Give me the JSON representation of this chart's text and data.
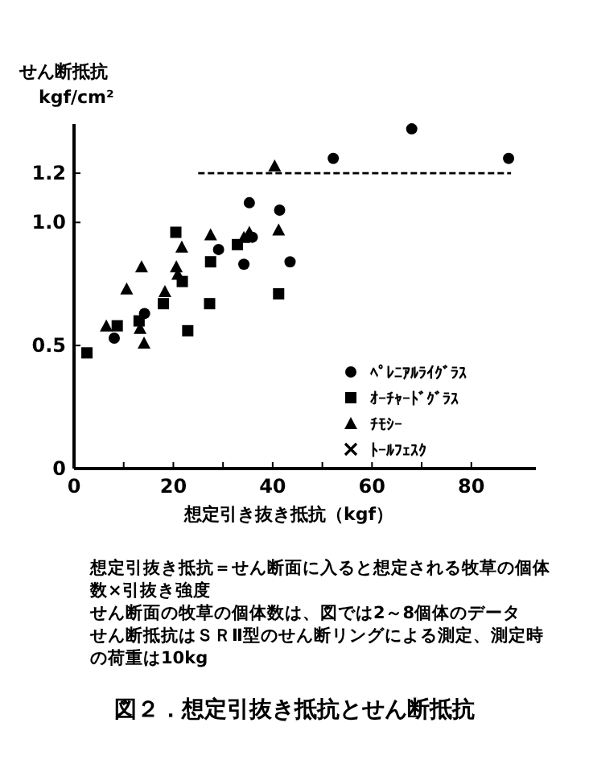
{
  "chart_data": {
    "type": "scatter",
    "title": "図２．想定引抜き抵抗とせん断抵抗",
    "ylabel": "せん断抵抗\nkgf/cm²",
    "xlabel": "想定引き抜き抵抗（kgf）",
    "annotations": [
      "想定引抜き抵抗＝せん断面に入ると想定される牧草の個体数×引抜き強度",
      "せん断面の牧草の個体数は、図では2～8個体のデータ",
      "せん断抵抗はＳＲⅡ型のせん断リングによる測定、測定時の荷重は10kg"
    ],
    "xlim": [
      0,
      93
    ],
    "ylim": [
      0,
      1.4
    ],
    "xticks": [
      0,
      {
        "value": 10,
        "label": null
      },
      20,
      {
        "value": 30,
        "label": null
      },
      40,
      {
        "value": 50,
        "label": null
      },
      60,
      {
        "value": 70,
        "label": null
      },
      80
    ],
    "yticks": [
      0,
      0.5,
      {
        "value": 1,
        "label": "1.0"
      },
      1.2
    ],
    "legend": "bottom right",
    "series": [
      {
        "name": "ﾍﾟﾚﾆｱﾙﾗｲｸﾞﾗｽ",
        "color": "#000000",
        "marker": "circle",
        "x": [
          8.1,
          14.2,
          35.3,
          41.4,
          29.1,
          34.2,
          35.9,
          43.5,
          52.2,
          68.0,
          87.5
        ],
        "values": [
          0.53,
          0.63,
          1.08,
          1.05,
          0.89,
          0.83,
          0.94,
          0.84,
          1.26,
          1.38,
          1.26
        ]
      },
      {
        "name": "ｵｰﾁｬｰﾄﾞｸﾞﾗｽ",
        "color": "#000000",
        "marker": "square",
        "x": [
          2.6,
          8.7,
          13.1,
          20.5,
          18.0,
          21.8,
          22.9,
          27.5,
          27.3,
          32.9,
          41.2
        ],
        "values": [
          0.47,
          0.58,
          0.6,
          0.96,
          0.67,
          0.76,
          0.56,
          0.84,
          0.67,
          0.91,
          0.71
        ]
      },
      {
        "name": "ﾁﾓｼｰ",
        "color": "#000000",
        "marker": "triangle",
        "x": [
          6.5,
          10.6,
          13.6,
          14.1,
          18.3,
          20.6,
          21.7,
          20.9,
          27.5,
          35.3,
          34.2,
          41.2,
          40.4,
          13.3
        ],
        "values": [
          0.58,
          0.73,
          0.82,
          0.51,
          0.72,
          0.82,
          0.9,
          0.79,
          0.95,
          0.96,
          0.94,
          0.97,
          1.23,
          0.57
        ]
      },
      {
        "name": "ﾄｰﾙﾌｪｽｸ",
        "color": "#000000",
        "marker": "cross"
      },
      {
        "type": "line",
        "color": "#000000",
        "marker": "none",
        "line_style": "dashed",
        "x": [
          25,
          88
        ],
        "values": [
          1.2,
          1.2
        ]
      }
    ]
  }
}
